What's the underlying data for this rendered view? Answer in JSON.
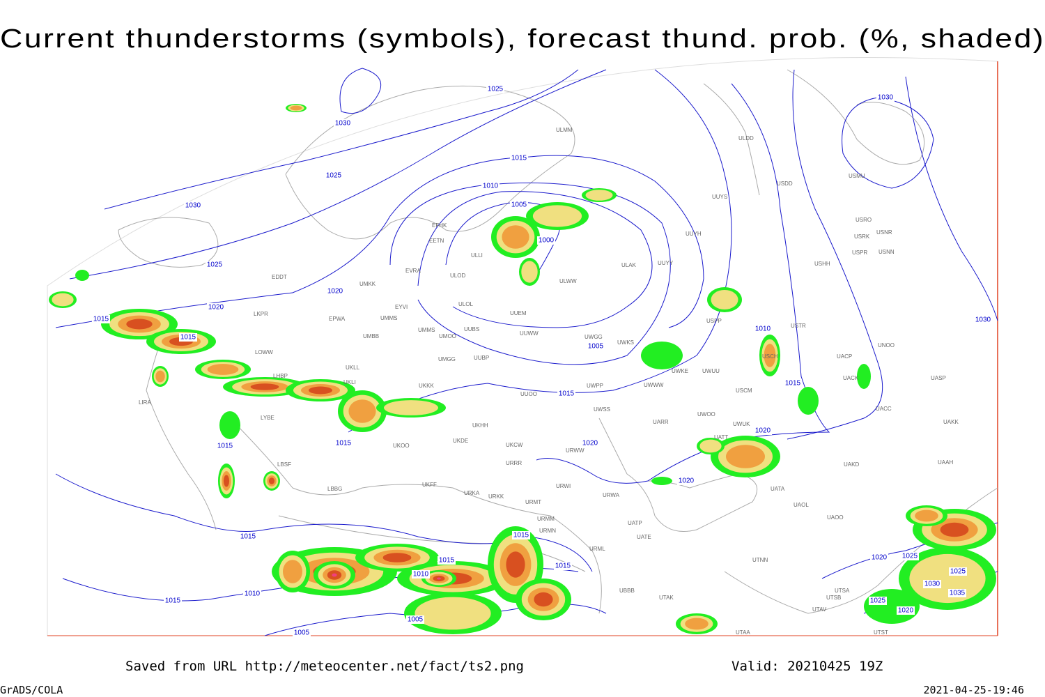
{
  "header": {
    "title": "Current thunderstorms (symbols), forecast thund. prob. (%, shaded)"
  },
  "footer": {
    "saved": "Saved from URL http://meteocenter.net/fact/ts2.png",
    "valid": "Valid: 20210425 19Z",
    "credit": "GrADS/COLA",
    "timestamp": "2021-04-25-19:46"
  },
  "isobar_labels": [
    "1025",
    "1030",
    "1025",
    "1030",
    "1025",
    "1020",
    "1020",
    "1015",
    "1015",
    "1015",
    "1010",
    "1005",
    "1000",
    "1005",
    "1015",
    "1015",
    "1015",
    "1020",
    "1020",
    "1010",
    "1015",
    "1020",
    "1030",
    "1030",
    "1015",
    "1015",
    "1010",
    "1005",
    "1015",
    "1010",
    "1015",
    "1015",
    "1005",
    "1020",
    "1025",
    "1030",
    "1035",
    "1025",
    "1025",
    "1020"
  ],
  "stations": [
    "ULMM",
    "ULDD",
    "USDD",
    "USMU",
    "UUYS",
    "USRO",
    "USRK",
    "USNR",
    "UUYH",
    "USPR",
    "USNN",
    "UUYY",
    "USHH",
    "ULAK",
    "ULWW",
    "EFHK",
    "EETN",
    "ULLI",
    "EVRA",
    "ULOD",
    "UMKK",
    "ULOL",
    "EYVI",
    "UUEM",
    "EDDT",
    "EPWA",
    "UMMS",
    "UMMS",
    "UMOO",
    "UUBS",
    "UUWW",
    "UWGG",
    "UWKS",
    "USPP",
    "USTR",
    "UNOO",
    "LKPR",
    "UMBB",
    "LOWW",
    "UMGG",
    "UUBP",
    "UWKE",
    "UWUU",
    "USCH",
    "UACP",
    "UACK",
    "UASP",
    "LHBP",
    "UKLL",
    "UKLI",
    "UKKK",
    "UUOO",
    "UWPP",
    "UWWW",
    "USCM",
    "LIRA",
    "LYBE",
    "UKHH",
    "UWSS",
    "UARR",
    "UWOO",
    "UWUK",
    "UACC",
    "UAKK",
    "UKOO",
    "UKDE",
    "UKCW",
    "URWW",
    "UATT",
    "LBSF",
    "URRR",
    "UAKD",
    "UAAH",
    "LBBG",
    "UKFF",
    "URKA",
    "URKK",
    "URMT",
    "URWI",
    "URWA",
    "UATA",
    "UAOL",
    "UAOO",
    "UATP",
    "UATE",
    "URMM",
    "URMN",
    "URML",
    "UBBB",
    "UTAK",
    "UTNN",
    "UTSA",
    "UTSB",
    "UTAV",
    "UTST",
    "UTAA"
  ]
}
